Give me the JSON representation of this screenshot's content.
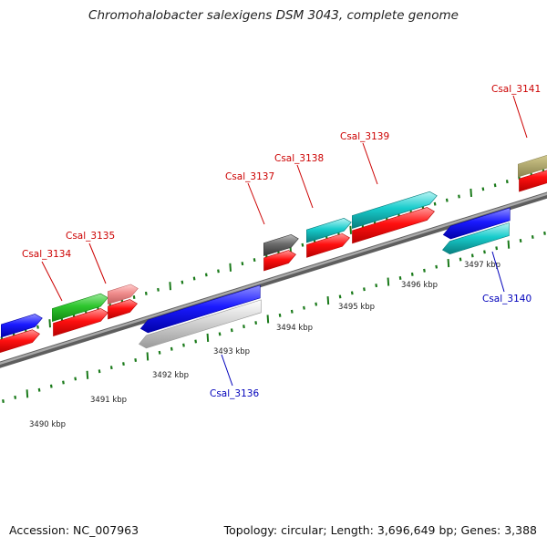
{
  "title": "Chromohalobacter salexigens DSM 3043, complete genome",
  "footer": {
    "accession": "Accession: NC_007963",
    "stats": "Topology: circular; Length: 3,696,649 bp; Genes: 3,388"
  },
  "colors": {
    "label_forward": "#cc0000",
    "label_reverse": "#0000bb",
    "tick": "#1a7a1a",
    "backbone": "#8c8c8c"
  },
  "scale_labels": [
    "3490 kbp",
    "3491 kbp",
    "3492 kbp",
    "3493 kbp",
    "3494 kbp",
    "3495 kbp",
    "3496 kbp",
    "3497 kbp"
  ],
  "gene_labels": [
    {
      "text": "Csal_3134",
      "strand": "forward"
    },
    {
      "text": "Csal_3135",
      "strand": "forward"
    },
    {
      "text": "Csal_3136",
      "strand": "reverse"
    },
    {
      "text": "Csal_3137",
      "strand": "forward"
    },
    {
      "text": "Csal_3138",
      "strand": "forward"
    },
    {
      "text": "Csal_3139",
      "strand": "forward"
    },
    {
      "text": "Csal_3140",
      "strand": "reverse"
    },
    {
      "text": "Csal_3141",
      "strand": "forward"
    }
  ]
}
